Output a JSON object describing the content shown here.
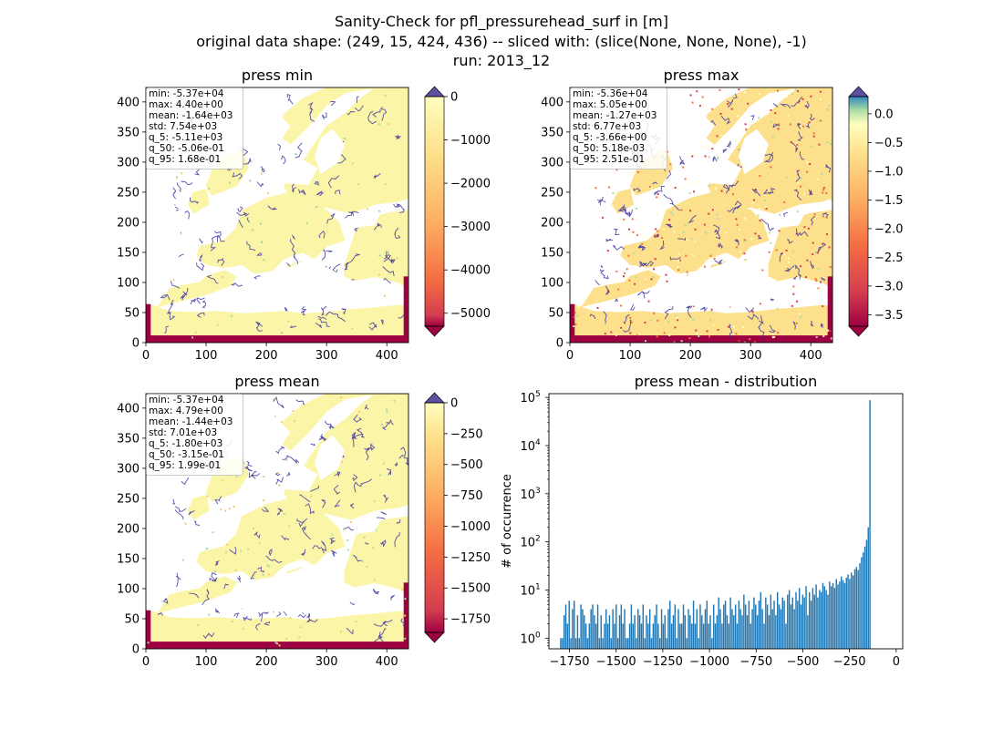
{
  "figure": {
    "title_lines": [
      "Sanity-Check for pfl_pressurehead_surf in [m]",
      "original data shape: (249, 15, 424, 436) -- sliced with: (slice(None, None, None), -1)",
      "run: 2013_12"
    ]
  },
  "colors": {
    "river": "#3a2f9c",
    "land_lo": "#f9f6aa",
    "bar": "#1f77b4",
    "cbar_over": "#5e4fa2",
    "cbar_under": "#9e0142"
  },
  "chart_data": [
    {
      "id": "press_min",
      "type": "heatmap",
      "title": "press min",
      "xlim": [
        0,
        436
      ],
      "ylim": [
        0,
        424
      ],
      "xticks": [
        "0",
        "100",
        "200",
        "300",
        "400"
      ],
      "yticks": [
        "0",
        "50",
        "100",
        "150",
        "200",
        "250",
        "300",
        "350",
        "400"
      ],
      "colormap": "Spectral",
      "color_range": [
        -5300,
        0
      ],
      "colorbar_ticks": [
        "0",
        "−1000",
        "−2000",
        "−3000",
        "−4000",
        "−5000"
      ],
      "colorbar_extend": "both",
      "stats": [
        "min: -5.37e+04",
        "max: 4.40e+00",
        "mean: -1.64e+03",
        "std: 7.54e+03",
        "q_5: -5.11e+03",
        "q_50: -5.06e-01",
        "q_95: 1.68e-01"
      ]
    },
    {
      "id": "press_max",
      "type": "heatmap",
      "title": "press max",
      "xlim": [
        0,
        436
      ],
      "ylim": [
        0,
        424
      ],
      "xticks": [
        "0",
        "100",
        "200",
        "300",
        "400"
      ],
      "yticks": [
        "0",
        "50",
        "100",
        "150",
        "200",
        "250",
        "300",
        "350",
        "400"
      ],
      "colormap": "Spectral",
      "color_range": [
        -3.7,
        0.3
      ],
      "colorbar_ticks": [
        "0.0",
        "−0.5",
        "−1.0",
        "−1.5",
        "−2.0",
        "−2.5",
        "−3.0",
        "−3.5"
      ],
      "colorbar_extend": "both",
      "stats": [
        "min: -5.36e+04",
        "max: 5.05e+00",
        "mean: -1.27e+03",
        "std: 6.77e+03",
        "q_5: -3.66e+00",
        "q_50: 5.18e-03",
        "q_95: 2.51e-01"
      ]
    },
    {
      "id": "press_mean",
      "type": "heatmap",
      "title": "press mean",
      "xlim": [
        0,
        436
      ],
      "ylim": [
        0,
        424
      ],
      "xticks": [
        "0",
        "100",
        "200",
        "300",
        "400"
      ],
      "yticks": [
        "0",
        "50",
        "100",
        "150",
        "200",
        "250",
        "300",
        "350",
        "400"
      ],
      "colormap": "Spectral",
      "color_range": [
        -1860,
        0
      ],
      "colorbar_ticks": [
        "0",
        "−250",
        "−500",
        "−750",
        "−1000",
        "−1250",
        "−1500",
        "−1750"
      ],
      "colorbar_extend": "both",
      "stats": [
        "min: -5.37e+04",
        "max: 4.79e+00",
        "mean: -1.44e+03",
        "std: 7.01e+03",
        "q_5: -1.80e+03",
        "q_50: -3.15e-01",
        "q_95: 1.99e-01"
      ]
    },
    {
      "id": "press_mean_dist",
      "type": "bar",
      "title": "press mean - distribution",
      "ylabel": "# of occurrence",
      "xlabel": "",
      "xlim": [
        -1860,
        35
      ],
      "ylim": [
        0.6,
        120000
      ],
      "yscale": "log",
      "xticks": [
        -1750,
        -1500,
        -1250,
        -1000,
        -750,
        -500,
        -250,
        0
      ],
      "xtick_labels": [
        "−1750",
        "−1500",
        "−1250",
        "−1000",
        "−750",
        "−500",
        "−250",
        "0"
      ],
      "yticks": [
        1,
        10,
        100,
        1000,
        10000,
        100000
      ],
      "ytick_labels": [
        "10",
        "10",
        "10",
        "10",
        "10",
        "10"
      ],
      "ytick_exponents": [
        "0",
        "1",
        "2",
        "3",
        "4",
        "5"
      ],
      "bin_start": -1800,
      "bin_width": 9,
      "values": [
        1,
        1,
        3,
        5,
        2,
        6,
        1,
        4,
        6,
        1,
        3,
        1,
        5,
        4,
        3,
        2,
        1,
        2,
        4,
        5,
        3,
        2,
        5,
        1,
        3,
        1,
        2,
        4,
        2,
        3,
        1,
        4,
        2,
        5,
        1,
        3,
        5,
        2,
        4,
        1,
        1,
        2,
        5,
        2,
        3,
        1,
        4,
        3,
        2,
        5,
        1,
        3,
        2,
        4,
        1,
        2,
        3,
        5,
        2,
        1,
        4,
        2,
        3,
        1,
        4,
        6,
        2,
        3,
        5,
        1,
        4,
        2,
        2,
        5,
        3,
        1,
        4,
        3,
        2,
        6,
        2,
        4,
        1,
        5,
        3,
        2,
        4,
        6,
        2,
        3,
        1,
        5,
        2,
        3,
        7,
        4,
        2,
        5,
        6,
        3,
        2,
        7,
        4,
        3,
        5,
        2,
        6,
        4,
        3,
        8,
        5,
        3,
        6,
        2,
        4,
        7,
        5,
        3,
        6,
        9,
        4,
        2,
        7,
        5,
        3,
        8,
        4,
        6,
        3,
        9,
        5,
        4,
        7,
        6,
        2,
        8,
        10,
        5,
        7,
        4,
        9,
        6,
        11,
        5,
        8,
        7,
        12,
        3,
        9,
        6,
        11,
        8,
        13,
        7,
        10,
        9,
        14,
        12,
        10,
        8,
        15,
        12,
        14,
        11,
        17,
        13,
        15,
        19,
        16,
        14,
        18,
        21,
        17,
        23,
        20,
        27,
        30,
        26,
        36,
        48,
        60,
        80,
        110,
        200,
        88000
      ]
    }
  ]
}
